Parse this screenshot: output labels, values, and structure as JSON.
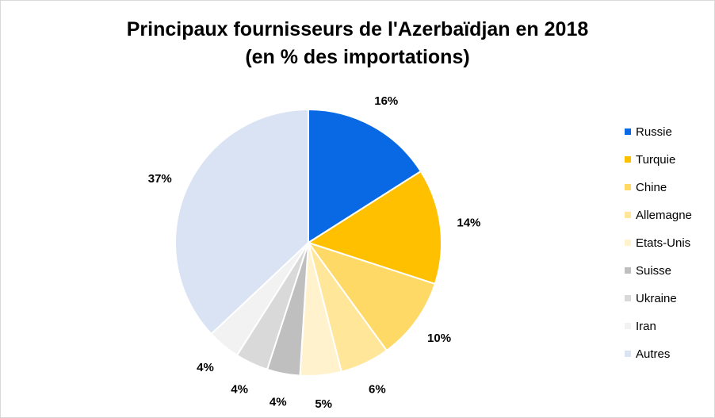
{
  "chart_data": {
    "type": "pie",
    "title": "Principaux fournisseurs de l'Azerbaïdjan en 2018",
    "subtitle": "(en % des importations)",
    "slices": [
      {
        "label": "Russie",
        "value": 16,
        "display": "16%",
        "color": "#0969e4"
      },
      {
        "label": "Turquie",
        "value": 14,
        "display": "14%",
        "color": "#ffc000"
      },
      {
        "label": "Chine",
        "value": 10,
        "display": "10%",
        "color": "#ffd966"
      },
      {
        "label": "Allemagne",
        "value": 6,
        "display": "6%",
        "color": "#ffe699"
      },
      {
        "label": "Etats-Unis",
        "value": 5,
        "display": "5%",
        "color": "#fff2cc"
      },
      {
        "label": "Suisse",
        "value": 4,
        "display": "4%",
        "color": "#bfbfbf"
      },
      {
        "label": "Ukraine",
        "value": 4,
        "display": "4%",
        "color": "#d9d9d9"
      },
      {
        "label": "Iran",
        "value": 4,
        "display": "4%",
        "color": "#f2f2f2"
      },
      {
        "label": "Autres",
        "value": 37,
        "display": "37%",
        "color": "#dae3f3"
      }
    ],
    "legend_position": "right"
  }
}
